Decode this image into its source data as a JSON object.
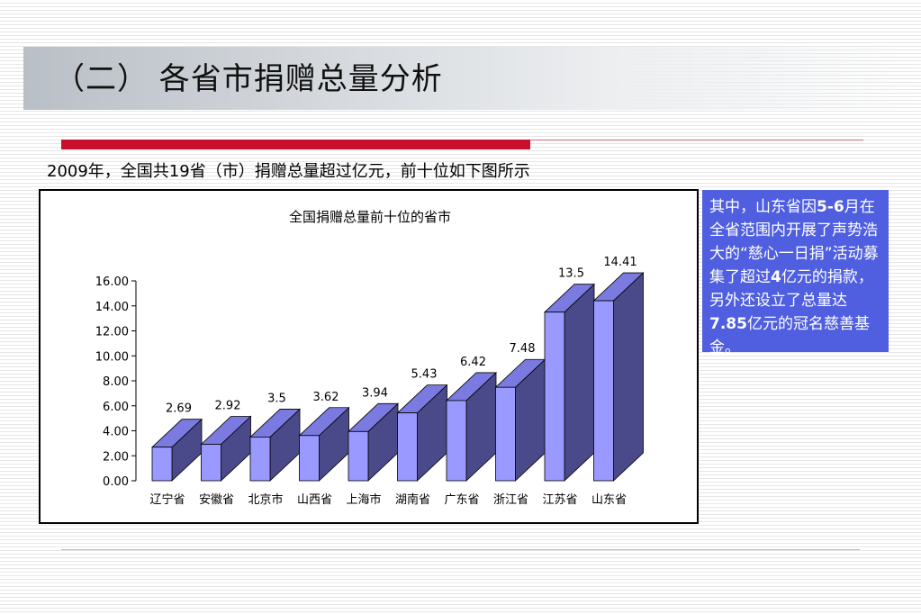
{
  "header": {
    "title": "（二） 各省市捐赠总量分析"
  },
  "intro": {
    "text": "2009年，全国共19省（市）捐赠总量超过亿元，前十位如下图所示"
  },
  "note": {
    "p1": "其中，山东省因",
    "b1": "5-6",
    "p2": "月在全省范围内开展了声势浩大的“慈心一日捐”活动募集了超过",
    "b2": "4",
    "p3": "亿元的捐款，另外还设立了总量达",
    "b3": "7.85",
    "p4": "亿元的冠名慈善基金。"
  },
  "colors": {
    "accent_red": "#c8102e",
    "note_bg": "#4f5fe0",
    "bar_front": "#9999ff",
    "bar_side": "#4a4a8a",
    "bar_top": "#7a7ae0"
  },
  "chart_data": {
    "type": "bar",
    "title": "全国捐赠总量前十位的省市",
    "xlabel": "",
    "ylabel": "",
    "categories": [
      "辽宁省",
      "安徽省",
      "北京市",
      "山西省",
      "上海市",
      "湖南省",
      "广东省",
      "浙江省",
      "江苏省",
      "山东省"
    ],
    "values": [
      2.69,
      2.92,
      3.5,
      3.62,
      3.94,
      5.43,
      6.42,
      7.48,
      13.5,
      14.41
    ],
    "value_labels": [
      "2.69",
      "2.92",
      "3.5",
      "3.62",
      "3.94",
      "5.43",
      "6.42",
      "7.48",
      "13.5",
      "14.41"
    ],
    "ylim": [
      0,
      16
    ],
    "yticks": [
      "0.00",
      "2.00",
      "4.00",
      "6.00",
      "8.00",
      "10.00",
      "12.00",
      "14.00",
      "16.00"
    ],
    "grid": false,
    "legend": "none"
  }
}
